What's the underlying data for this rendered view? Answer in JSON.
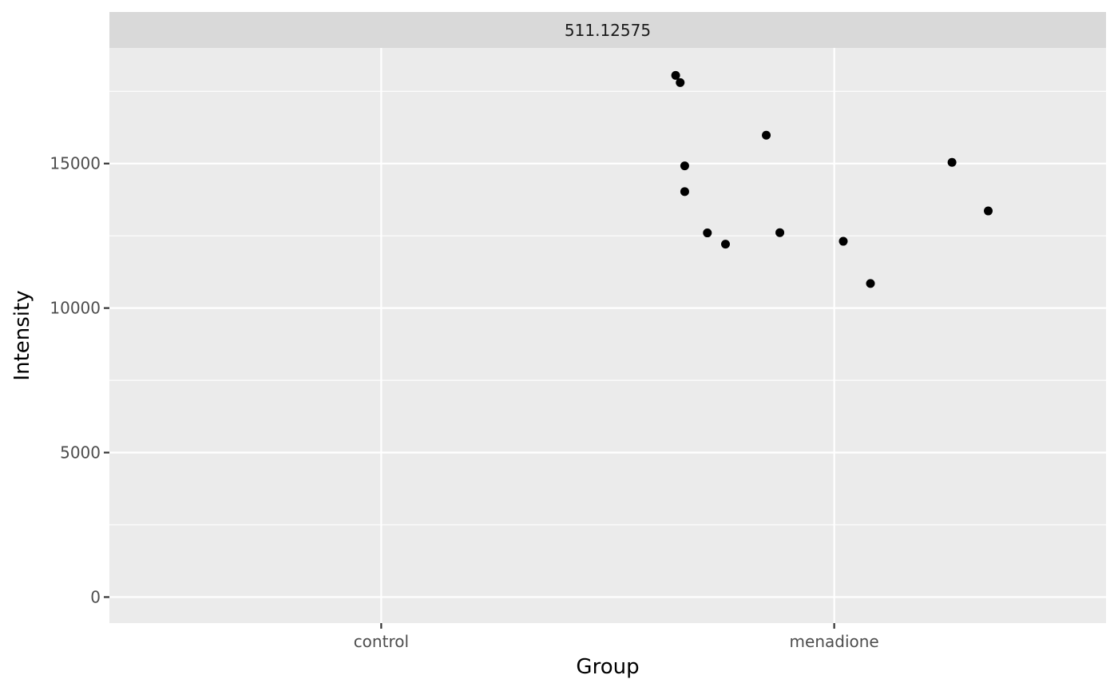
{
  "chart_data": {
    "type": "scatter",
    "facet_label": "511.12575",
    "xlabel": "Group",
    "ylabel": "Intensity",
    "categories": [
      "control",
      "menadione"
    ],
    "yticks": [
      0,
      5000,
      10000,
      15000
    ],
    "ylim": [
      -900,
      19000
    ],
    "grid": true,
    "legend": "none",
    "colors": {
      "panel": "#ebebeb",
      "strip": "#d9d9d9",
      "grid": "#ffffff",
      "point": "#000000",
      "tick": "#333333"
    },
    "points": [
      {
        "x": 1.65,
        "y": 18050
      },
      {
        "x": 1.66,
        "y": 17800
      },
      {
        "x": 1.67,
        "y": 14920
      },
      {
        "x": 1.67,
        "y": 14030
      },
      {
        "x": 1.72,
        "y": 12600
      },
      {
        "x": 1.76,
        "y": 12210
      },
      {
        "x": 1.85,
        "y": 15980
      },
      {
        "x": 1.88,
        "y": 12610
      },
      {
        "x": 2.02,
        "y": 12310
      },
      {
        "x": 2.08,
        "y": 10850
      },
      {
        "x": 2.26,
        "y": 15040
      },
      {
        "x": 2.34,
        "y": 13360
      }
    ]
  }
}
